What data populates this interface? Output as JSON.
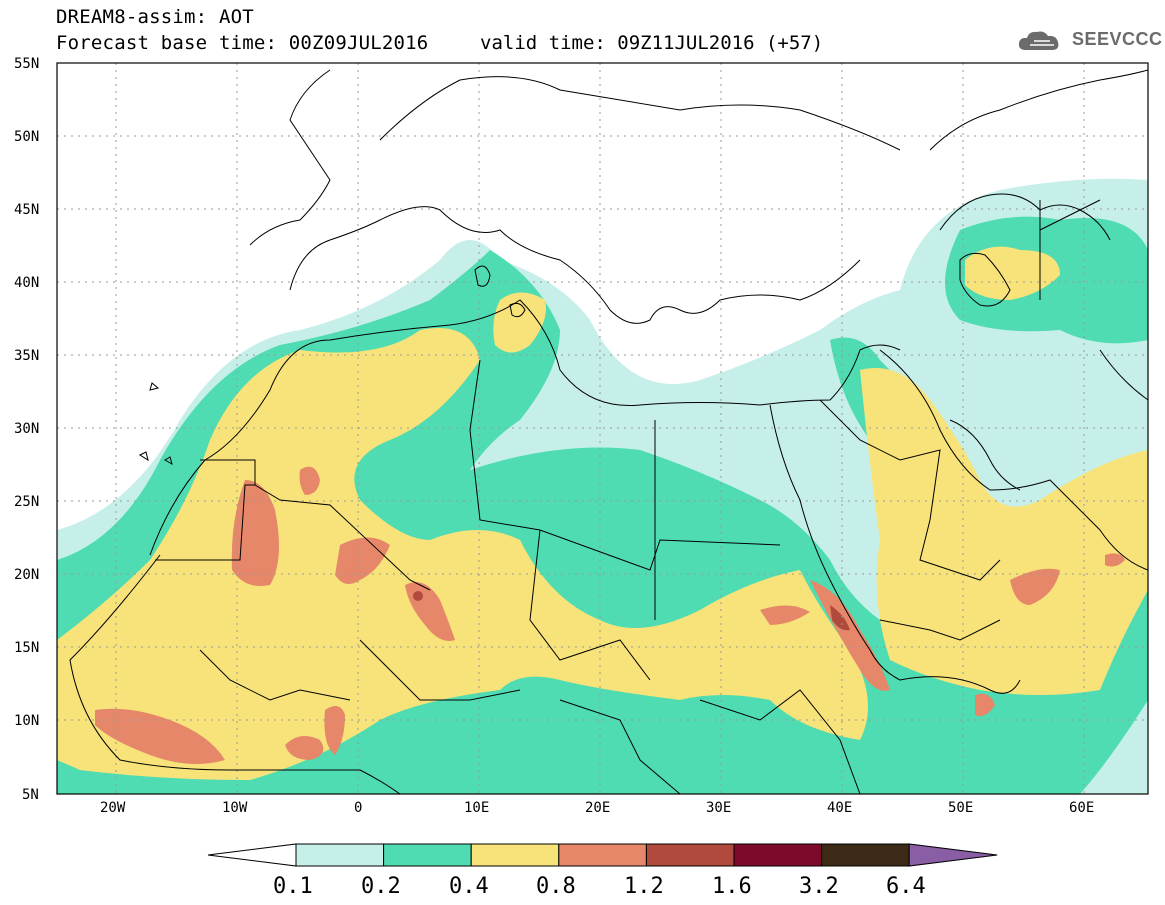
{
  "header": {
    "line1": "DREAM8-assim: AOT",
    "line2": "Forecast base time: 00Z09JUL2016",
    "valid": "valid time: 09Z11JUL2016 (+57)",
    "logo_text": "SEEVCCC"
  },
  "map": {
    "extent": {
      "lon": [
        -25,
        65
      ],
      "lat": [
        5,
        55
      ]
    },
    "lat_ticks": [
      {
        "value": 55,
        "label": "55N"
      },
      {
        "value": 50,
        "label": "50N"
      },
      {
        "value": 45,
        "label": "45N"
      },
      {
        "value": 40,
        "label": "40N"
      },
      {
        "value": 35,
        "label": "35N"
      },
      {
        "value": 30,
        "label": "30N"
      },
      {
        "value": 25,
        "label": "25N"
      },
      {
        "value": 20,
        "label": "20N"
      },
      {
        "value": 15,
        "label": "15N"
      },
      {
        "value": 10,
        "label": "10N"
      },
      {
        "value": 5,
        "label": "5N"
      }
    ],
    "lon_ticks": [
      {
        "value": -20,
        "label": "20W"
      },
      {
        "value": -10,
        "label": "10W"
      },
      {
        "value": 0,
        "label": "0"
      },
      {
        "value": 10,
        "label": "10E"
      },
      {
        "value": 20,
        "label": "20E"
      },
      {
        "value": 30,
        "label": "30E"
      },
      {
        "value": 40,
        "label": "40E"
      },
      {
        "value": 50,
        "label": "50E"
      },
      {
        "value": 60,
        "label": "60E"
      }
    ]
  },
  "colorbar": {
    "levels": [
      "0.1",
      "0.2",
      "0.4",
      "0.8",
      "1.2",
      "1.6",
      "3.2",
      "6.4"
    ],
    "colors": [
      "#ffffff",
      "#c6efe9",
      "#4fdcb2",
      "#f7e37a",
      "#e6876a",
      "#b04a3c",
      "#7d0a2a",
      "#3c2a16",
      "#8a5ea5"
    ]
  }
}
